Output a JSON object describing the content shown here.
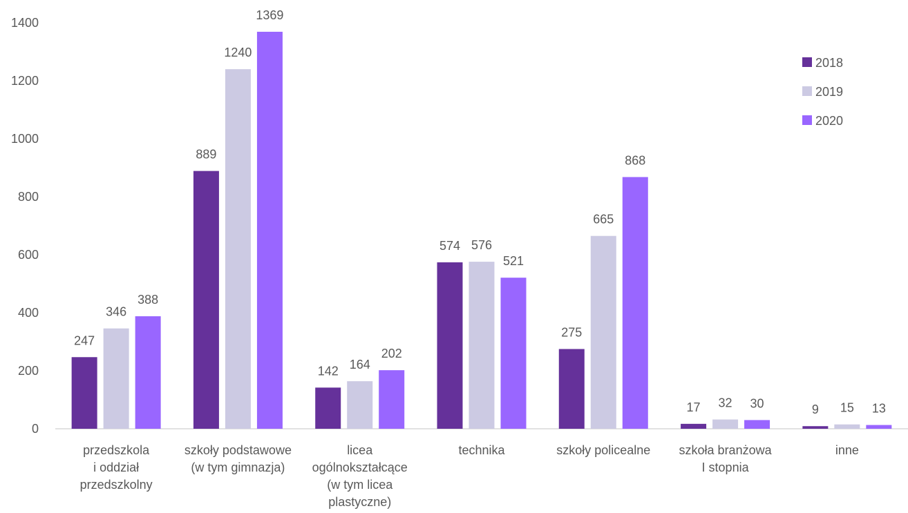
{
  "chart_data": {
    "type": "bar",
    "title": "",
    "xlabel": "",
    "ylabel": "",
    "ylim": [
      0,
      1400
    ],
    "yticks": [
      0,
      200,
      400,
      600,
      800,
      1000,
      1200,
      1400
    ],
    "grid": false,
    "legend_position": "top-right",
    "categories": [
      [
        "przedszkola",
        "i oddział",
        "przedszkolny"
      ],
      [
        "szkoły podstawowe",
        "(w tym gimnazja)"
      ],
      [
        "licea",
        "ogólnokształcące",
        "(w tym licea",
        "plastyczne)"
      ],
      [
        "technika"
      ],
      [
        "szkoły policealne"
      ],
      [
        "szkoła branżowa",
        "I stopnia"
      ],
      [
        "inne"
      ]
    ],
    "series": [
      {
        "name": "2018",
        "color": "#65319a",
        "values": [
          247,
          889,
          142,
          574,
          275,
          17,
          9
        ]
      },
      {
        "name": "2019",
        "color": "#cccae3",
        "values": [
          346,
          1240,
          164,
          576,
          665,
          32,
          15
        ]
      },
      {
        "name": "2020",
        "color": "#9966ff",
        "values": [
          388,
          1369,
          202,
          521,
          868,
          30,
          13
        ]
      }
    ]
  }
}
